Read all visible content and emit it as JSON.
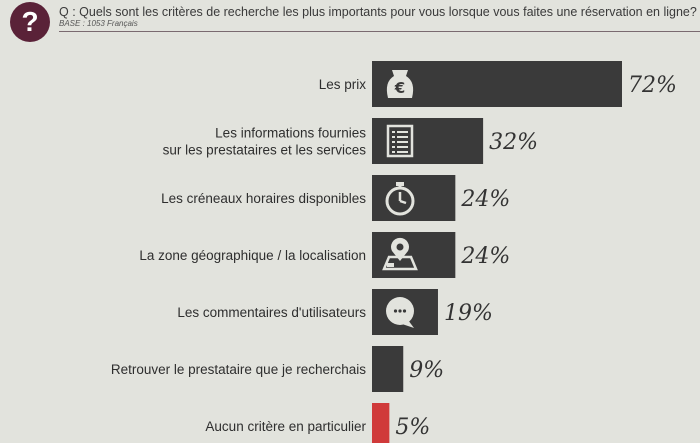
{
  "header": {
    "badge": "?",
    "question": "Q : Quels sont les critères de recherche les plus importants pour vous lorsque vous faites une réservation en ligne?",
    "base": "BASE : 1053 Français"
  },
  "colors": {
    "bar": "#3a3a3a",
    "highlight": "#d03a3a",
    "badge": "#5a2238",
    "background": "#e2e3dd"
  },
  "chart_data": {
    "type": "bar",
    "orientation": "horizontal",
    "title": "",
    "categories": [
      [
        "Les prix"
      ],
      [
        "Les informations fournies",
        "sur les prestataires et les services"
      ],
      [
        "Les créneaux horaires disponibles"
      ],
      [
        "La zone géographique / la localisation"
      ],
      [
        "Les commentaires d'utilisateurs"
      ],
      [
        "Retrouver le prestataire que je recherchais"
      ],
      [
        "Aucun critère en particulier"
      ]
    ],
    "values": [
      72,
      32,
      24,
      24,
      19,
      9,
      5
    ],
    "value_labels": [
      "72%",
      "32%",
      "24%",
      "24%",
      "19%",
      "9%",
      "5%"
    ],
    "icons": [
      "euro-moneybag-icon",
      "document-list-icon",
      "stopwatch-icon",
      "map-pin-icon",
      "speech-bubble-icon",
      "",
      ""
    ],
    "bar_colors": [
      "#3a3a3a",
      "#3a3a3a",
      "#3a3a3a",
      "#3a3a3a",
      "#3a3a3a",
      "#3a3a3a",
      "#d03a3a"
    ],
    "grid": false,
    "legend": "none",
    "xlim": [
      0,
      72
    ]
  }
}
